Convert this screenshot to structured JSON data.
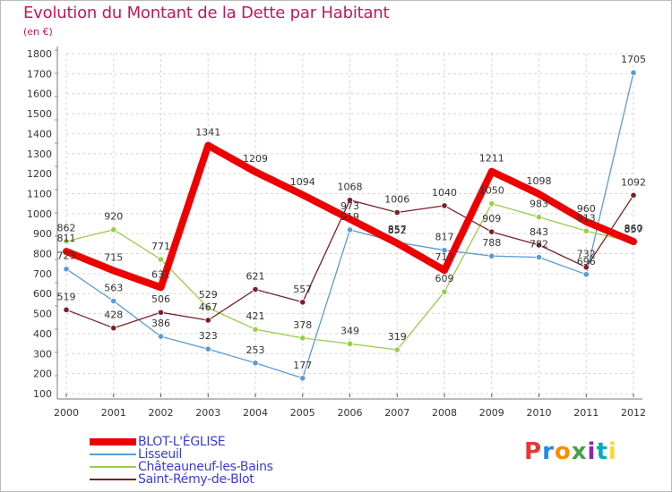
{
  "title": "Evolution du Montant de la Dette par Habitant",
  "subtitle": "(en €)",
  "logo": {
    "text": "Proxiti",
    "colors": [
      "#e53935",
      "#1e88e5",
      "#fb8c00",
      "#43a047",
      "#8e24aa",
      "#00acc1",
      "#fdd835"
    ]
  },
  "chart_data": {
    "type": "line",
    "x": [
      "2000",
      "2001",
      "2002",
      "2003",
      "2004",
      "2005",
      "2006",
      "2007",
      "2008",
      "2009",
      "2010",
      "2011",
      "2012"
    ],
    "ylim": [
      100,
      1800
    ],
    "yticks": [
      100,
      200,
      300,
      400,
      500,
      600,
      700,
      800,
      900,
      1000,
      1100,
      1200,
      1300,
      1400,
      1500,
      1600,
      1700,
      1800
    ],
    "grid": true,
    "legend_position": "bottom-left",
    "series": [
      {
        "name": "BLOT-L'ÉGLISE",
        "color": "#ee0000",
        "width": 8,
        "marker": false,
        "values": [
          811,
          715,
          631,
          1341,
          1209,
          1094,
          973,
          852,
          717,
          1211,
          1098,
          960,
          860
        ]
      },
      {
        "name": "Lisseuil",
        "color": "#5b9bd5",
        "width": 1.3,
        "marker": true,
        "values": [
          723,
          563,
          386,
          323,
          253,
          177,
          919,
          857,
          817,
          788,
          782,
          696,
          1705
        ]
      },
      {
        "name": "Châteauneuf-les-Bains",
        "color": "#9acd4a",
        "width": 1.3,
        "marker": true,
        "values": [
          862,
          920,
          771,
          529,
          421,
          378,
          349,
          319,
          609,
          1050,
          983,
          913,
          857
        ]
      },
      {
        "name": "Saint-Rémy-de-Blot",
        "color": "#7b1f2a",
        "width": 1.3,
        "marker": true,
        "values": [
          519,
          428,
          506,
          467,
          621,
          557,
          1068,
          1006,
          1040,
          909,
          843,
          732,
          1092
        ]
      }
    ]
  }
}
